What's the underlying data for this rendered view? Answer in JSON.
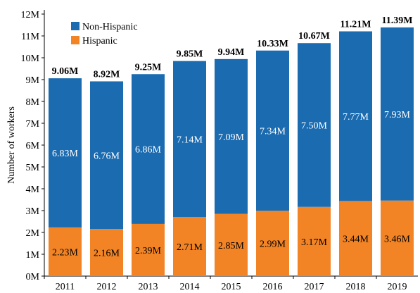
{
  "chart_data": {
    "type": "bar",
    "stacked": true,
    "title": "",
    "xlabel": "",
    "ylabel": "Number of workers",
    "ylim": [
      0,
      12
    ],
    "y_unit": "M",
    "yticks": [
      "0M",
      "1M",
      "2M",
      "3M",
      "4M",
      "5M",
      "6M",
      "7M",
      "8M",
      "9M",
      "10M",
      "11M",
      "12M"
    ],
    "categories": [
      "2011",
      "2012",
      "2013",
      "2014",
      "2015",
      "2016",
      "2017",
      "2018",
      "2019"
    ],
    "series": [
      {
        "name": "Hispanic",
        "color": "#f28426",
        "values": [
          2.23,
          2.16,
          2.39,
          2.71,
          2.85,
          2.99,
          3.17,
          3.44,
          3.46
        ],
        "labels": [
          "2.23M",
          "2.16M",
          "2.39M",
          "2.71M",
          "2.85M",
          "2.99M",
          "3.17M",
          "3.44M",
          "3.46M"
        ]
      },
      {
        "name": "Non-Hispanic",
        "color": "#1b6bb0",
        "values": [
          6.83,
          6.76,
          6.86,
          7.14,
          7.09,
          7.34,
          7.5,
          7.77,
          7.93
        ],
        "labels": [
          "6.83M",
          "6.76M",
          "6.86M",
          "7.14M",
          "7.09M",
          "7.34M",
          "7.50M",
          "7.77M",
          "7.93M"
        ]
      }
    ],
    "totals": {
      "values": [
        9.06,
        8.92,
        9.25,
        9.85,
        9.94,
        10.33,
        10.67,
        11.21,
        11.39
      ],
      "labels": [
        "9.06M",
        "8.92M",
        "9.25M",
        "9.85M",
        "9.94M",
        "10.33M",
        "10.67M",
        "11.21M",
        "11.39M"
      ]
    },
    "legend": {
      "placement": "top-left",
      "entries": [
        "Non-Hispanic",
        "Hispanic"
      ]
    },
    "grid": false
  }
}
